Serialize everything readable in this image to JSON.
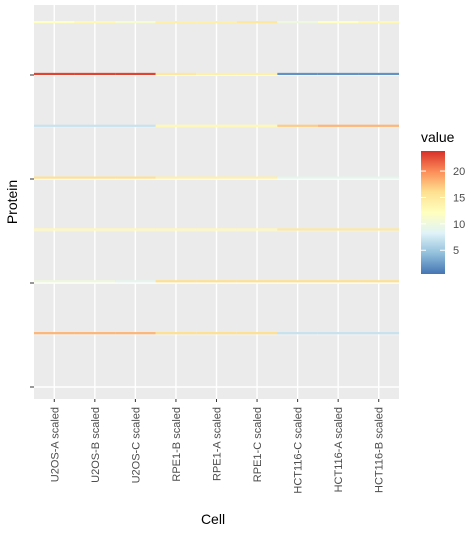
{
  "chart_data": {
    "type": "heatmap",
    "xlabel": "Cell",
    "ylabel": "Protein",
    "categories": [
      "U2OS-A scaled",
      "U2OS-B scaled",
      "U2OS-C scaled",
      "RPE1-B scaled",
      "RPE1-A scaled",
      "RPE1-C scaled",
      "HCT116-C scaled",
      "HCT116-A scaled",
      "HCT116-B scaled"
    ],
    "legend": {
      "title": "value",
      "ticks": [
        5,
        10,
        15,
        20
      ],
      "range": [
        0.5,
        23.8
      ]
    },
    "colorscale": [
      "#4575b4",
      "#91bfdb",
      "#e0f3f8",
      "#ffffbf",
      "#fee090",
      "#fc8d59",
      "#d73027"
    ],
    "y_tick_count": 4,
    "grid": true,
    "rows": [
      {
        "values": [
          12,
          13,
          11,
          14,
          14,
          15,
          10,
          12,
          13
        ]
      },
      {
        "values": [
          23,
          23,
          23,
          15,
          14,
          14,
          2,
          2,
          2
        ]
      },
      {
        "values": [
          7,
          7,
          7,
          13,
          13,
          13,
          17,
          18,
          18
        ]
      },
      {
        "values": [
          16,
          16,
          16,
          14,
          14,
          14,
          9,
          9,
          9
        ]
      },
      {
        "values": [
          13,
          13,
          13,
          13,
          13,
          13,
          15,
          15,
          15
        ]
      },
      {
        "values": [
          10,
          10,
          9,
          16,
          16,
          16,
          16,
          16,
          16
        ]
      },
      {
        "values": [
          18,
          18,
          18,
          16,
          16,
          16,
          7,
          7,
          7
        ]
      }
    ]
  }
}
